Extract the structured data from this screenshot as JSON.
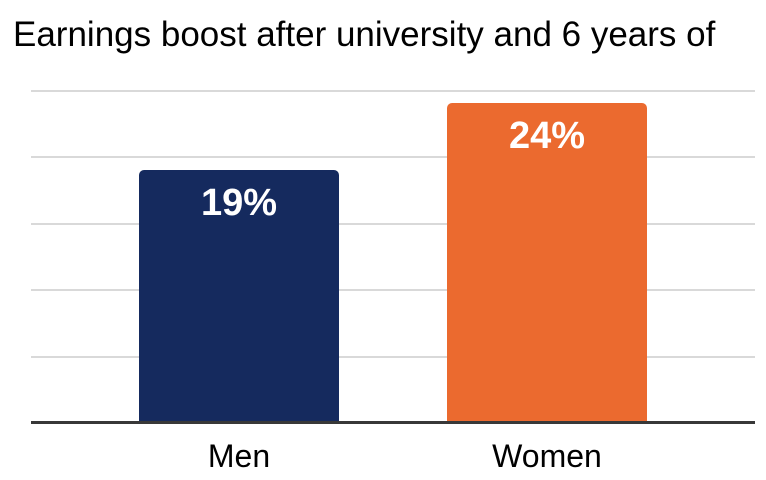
{
  "page": {
    "background_color": "#FFFFFF"
  },
  "chart_data": {
    "type": "bar",
    "title": "Earnings boost after university and 6 years of",
    "categories": [
      "Men",
      "Women"
    ],
    "values": [
      19,
      24
    ],
    "value_labels": [
      "19%",
      "24%"
    ],
    "series_colors": [
      "#152A5E",
      "#EB6A2F"
    ],
    "xlabel": "",
    "ylabel": "",
    "ylim": [
      0,
      25
    ],
    "gridline_step": 5,
    "grid": "horizontal gridlines, no y tick labels",
    "legend": "none",
    "colors": {
      "title_text": "#000000",
      "category_text": "#000000",
      "value_label_text": "#FFFFFF",
      "gridline": "#D9D9D9",
      "axis_line": "#383838"
    }
  }
}
